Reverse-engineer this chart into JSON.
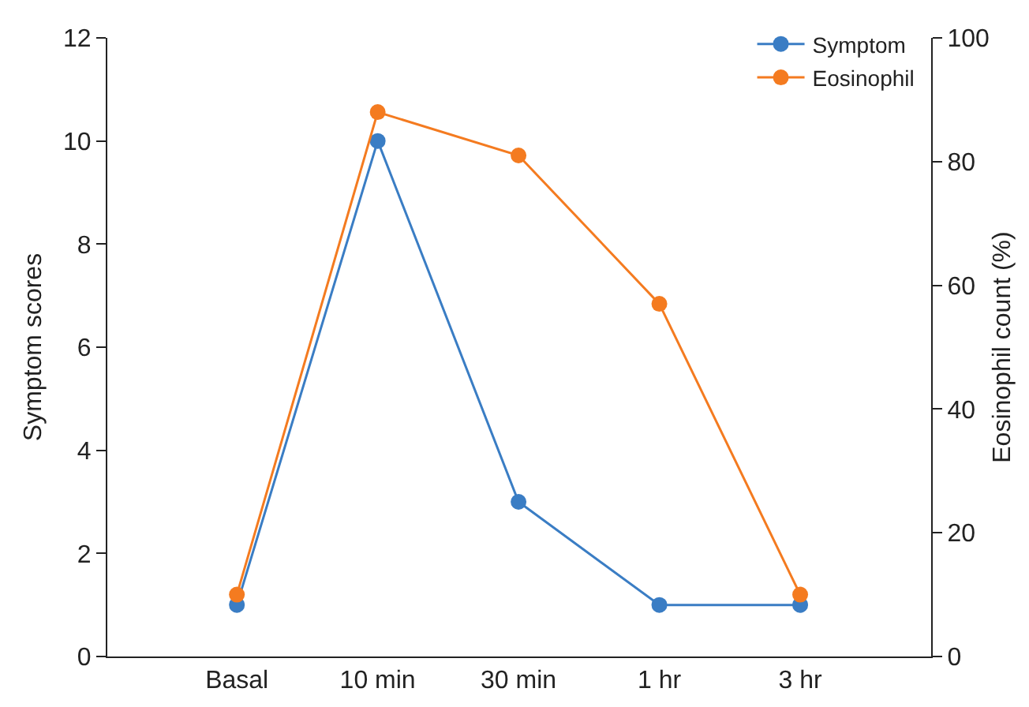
{
  "chart_data": {
    "type": "line",
    "categories": [
      "Basal",
      "10 min",
      "30 min",
      "1 hr",
      "3 hr"
    ],
    "ylabel": "Symptom scores",
    "y2label": "Eosinophil count (%)",
    "ylim": [
      0,
      12
    ],
    "yticks": [
      0,
      2,
      4,
      6,
      8,
      10,
      12
    ],
    "y2lim": [
      0,
      100
    ],
    "y2ticks": [
      0,
      20,
      40,
      60,
      80,
      100
    ],
    "grid": false,
    "legend": "top right",
    "marker": "circle",
    "line_style": "solid",
    "series": [
      {
        "name": "Symptom",
        "color": "#3a7dc4",
        "values": [
          1,
          10,
          3,
          1,
          1
        ]
      },
      {
        "name": "Eosinophil",
        "color": "#f47b20",
        "axis": "y2",
        "values": [
          10,
          88,
          81,
          57,
          10
        ]
      }
    ]
  }
}
